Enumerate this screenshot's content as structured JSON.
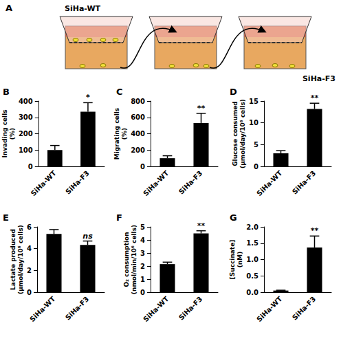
{
  "diagram": {
    "panel": "A",
    "source": "SiHa-WT",
    "result": "SiHa-F3"
  },
  "chart_data": [
    {
      "panel": "B",
      "type": "bar",
      "ylabel": "Invading cells (%)",
      "categories": [
        "SiHa-WT",
        "SiHa-F3"
      ],
      "values": [
        100,
        335
      ],
      "errors": [
        28,
        55
      ],
      "color": "#000000",
      "ylim": [
        0,
        400
      ],
      "yticks": [
        0,
        100,
        200,
        300,
        400
      ],
      "grid": false,
      "annotations": [
        {
          "category": "SiHa-F3",
          "text": "*"
        }
      ]
    },
    {
      "panel": "C",
      "type": "bar",
      "ylabel": "Migrating cells (%)",
      "categories": [
        "SiHa-WT",
        "SiHa-F3"
      ],
      "values": [
        100,
        530
      ],
      "errors": [
        30,
        120
      ],
      "color": "#000000",
      "ylim": [
        0,
        800
      ],
      "yticks": [
        0,
        200,
        400,
        600,
        800
      ],
      "grid": false,
      "annotations": [
        {
          "category": "SiHa-F3",
          "text": "**"
        }
      ]
    },
    {
      "panel": "D",
      "type": "bar",
      "ylabel": "Glucose consumed (µmol/day/10⁶ cells)",
      "categories": [
        "SiHa-WT",
        "SiHa-F3"
      ],
      "values": [
        3,
        13.2
      ],
      "errors": [
        0.6,
        1.3
      ],
      "color": "#000000",
      "ylim": [
        0,
        15
      ],
      "yticks": [
        0,
        5,
        10,
        15
      ],
      "grid": false,
      "annotations": [
        {
          "category": "SiHa-F3",
          "text": "**"
        }
      ]
    },
    {
      "panel": "E",
      "type": "bar",
      "ylabel": "Lactate produced (µmol/day/10⁶ cells)",
      "categories": [
        "SiHa-WT",
        "SiHa-F3"
      ],
      "values": [
        5.35,
        4.35
      ],
      "errors": [
        0.4,
        0.35
      ],
      "color": "#000000",
      "ylim": [
        0,
        6
      ],
      "yticks": [
        0,
        2,
        4,
        6
      ],
      "grid": false,
      "annotations": [
        {
          "category": "SiHa-F3",
          "text": "ns"
        }
      ]
    },
    {
      "panel": "F",
      "type": "bar",
      "ylabel": "O₂ consumption (nmol/min/10⁶ cells)",
      "categories": [
        "SiHa-WT",
        "SiHa-F3"
      ],
      "values": [
        2.15,
        4.5
      ],
      "errors": [
        0.15,
        0.2
      ],
      "color": "#000000",
      "ylim": [
        0,
        5
      ],
      "yticks": [
        0,
        1,
        2,
        3,
        4,
        5
      ],
      "grid": false,
      "annotations": [
        {
          "category": "SiHa-F3",
          "text": "**"
        }
      ]
    },
    {
      "panel": "G",
      "type": "bar",
      "ylabel": "[Succinate] (nM)",
      "categories": [
        "SiHa-WT",
        "SiHa-F3"
      ],
      "values": [
        0.05,
        1.37
      ],
      "errors": [
        0.01,
        0.35
      ],
      "color": "#000000",
      "ylim": [
        0,
        2
      ],
      "yticks": [
        {
          "value": 0,
          "label": "0.0"
        },
        {
          "value": 0.5,
          "label": "0.5"
        },
        {
          "value": 1,
          "label": "1.0"
        },
        {
          "value": 1.5,
          "label": "1.5"
        },
        {
          "value": 2,
          "label": "2.0"
        }
      ],
      "grid": false,
      "annotations": [
        {
          "category": "SiHa-F3",
          "text": "**"
        }
      ]
    }
  ]
}
